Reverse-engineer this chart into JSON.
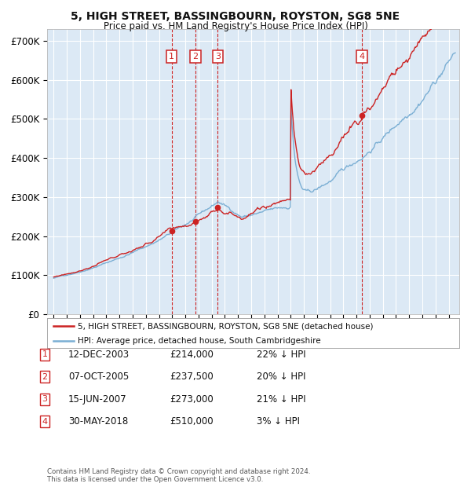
{
  "title": "5, HIGH STREET, BASSINGBOURN, ROYSTON, SG8 5NE",
  "subtitle": "Price paid vs. HM Land Registry's House Price Index (HPI)",
  "ylim": [
    0,
    730000
  ],
  "yticks": [
    0,
    100000,
    200000,
    300000,
    400000,
    500000,
    600000,
    700000
  ],
  "ytick_labels": [
    "£0",
    "£100K",
    "£200K",
    "£300K",
    "£400K",
    "£500K",
    "£600K",
    "£700K"
  ],
  "background_color": "#ffffff",
  "plot_bg_color": "#dce9f5",
  "grid_color": "#ffffff",
  "hpi_color": "#7bafd4",
  "price_color": "#cc2222",
  "vline_color": "#cc2222",
  "transactions": [
    {
      "num": 1,
      "date": "12-DEC-2003",
      "price": 214000,
      "year": 2003.95,
      "pct": "22%",
      "dir": "↓"
    },
    {
      "num": 2,
      "date": "07-OCT-2005",
      "price": 237500,
      "year": 2005.77,
      "pct": "20%",
      "dir": "↓"
    },
    {
      "num": 3,
      "date": "15-JUN-2007",
      "price": 273000,
      "year": 2007.45,
      "pct": "21%",
      "dir": "↓"
    },
    {
      "num": 4,
      "date": "30-MAY-2018",
      "price": 510000,
      "year": 2018.41,
      "pct": "3%",
      "dir": "↓"
    }
  ],
  "legend_line1": "5, HIGH STREET, BASSINGBOURN, ROYSTON, SG8 5NE (detached house)",
  "legend_line2": "HPI: Average price, detached house, South Cambridgeshire",
  "footnote": "Contains HM Land Registry data © Crown copyright and database right 2024.\nThis data is licensed under the Open Government Licence v3.0.",
  "xmin": 1994.5,
  "xmax": 2025.8
}
